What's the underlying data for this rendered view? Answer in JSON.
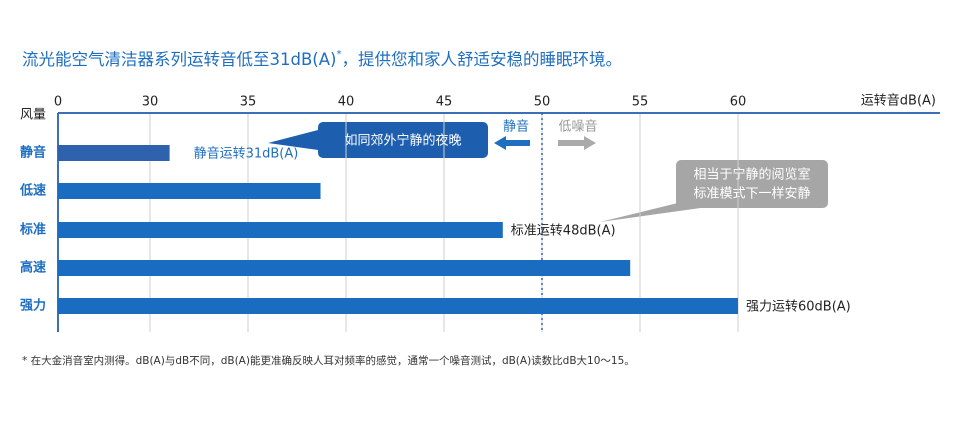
{
  "chart_data": {
    "type": "barh",
    "title": "流光能空气清洁器系列运转音低至31dB(A)",
    "title_mark": "*",
    "title_rest": "，提供您和家人舒适安稳的睡眠环境。",
    "ylabel": "风量",
    "xlabel": "运转音dB(A)",
    "categories": [
      "静音",
      "低速",
      "标准",
      "高速",
      "强力"
    ],
    "values": [
      31,
      38.7,
      48,
      54.5,
      60
    ],
    "value_labels": [
      "静音运转31dB(A)",
      null,
      "标准运转48dB(A)",
      null,
      "强力运转60dB(A)"
    ],
    "colors": [
      "#2e62ad",
      "#1a6cc0",
      "#1a6cc0",
      "#1a6cc0",
      "#1a6cc0"
    ],
    "xlim": [
      0,
      62
    ],
    "xbreak": 30,
    "xticks": [
      0,
      30,
      35,
      40,
      45,
      50,
      55,
      60
    ],
    "grid": true,
    "reference_line": 50,
    "reference_left_label": "静音",
    "reference_right_label": "低噪音",
    "callouts": [
      "如同郊外宁静的夜晚",
      "相当于宁静的阅览室",
      "标准模式下一样安静"
    ],
    "footnote": "* 在大金消音室内测得。dB(A)与dB不同，dB(A)能更准确反映人耳对频率的感觉，通常一个噪音测试，dB(A)读数比dB大10～15。"
  }
}
